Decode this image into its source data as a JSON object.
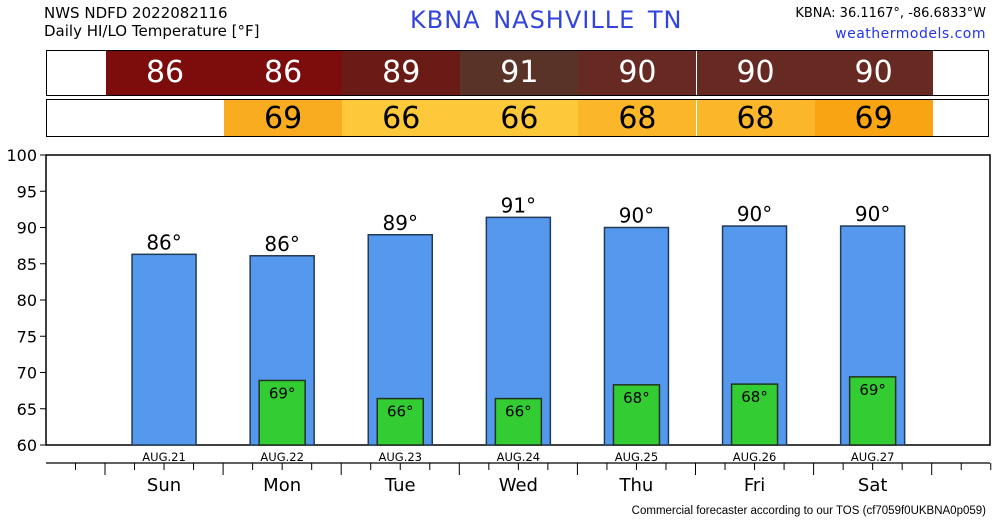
{
  "header": {
    "line1": "NWS NDFD 2022082116",
    "line2": "Daily HI/LO Temperature [°F]",
    "title": "KBNA  NASHVILLE    TN",
    "coords": "KBNA: 36.1167°, -86.6833°W",
    "site": "weathermodels.com"
  },
  "hi_strip": [
    {
      "value": "86",
      "color": "#7d0c0c"
    },
    {
      "value": "86",
      "color": "#7d0c0c"
    },
    {
      "value": "89",
      "color": "#6a1b16"
    },
    {
      "value": "91",
      "color": "#5a3328"
    },
    {
      "value": "90",
      "color": "#662a22"
    },
    {
      "value": "90",
      "color": "#662a22"
    },
    {
      "value": "90",
      "color": "#662a22"
    }
  ],
  "lo_strip": [
    {
      "value": "69",
      "color": "#f9ac20"
    },
    {
      "value": "66",
      "color": "#fdc93a"
    },
    {
      "value": "66",
      "color": "#fdc93a"
    },
    {
      "value": "68",
      "color": "#fbb62a"
    },
    {
      "value": "68",
      "color": "#fbb62a"
    },
    {
      "value": "69",
      "color": "#f9a412"
    }
  ],
  "chart_data": {
    "type": "bar",
    "days": [
      "Sun",
      "Mon",
      "Tue",
      "Wed",
      "Thu",
      "Fri",
      "Sat"
    ],
    "dates": [
      "AUG.21",
      "AUG.22",
      "AUG.23",
      "AUG.24",
      "AUG.25",
      "AUG.26",
      "AUG.27"
    ],
    "series": [
      {
        "values": [
          86.3,
          86.1,
          89.0,
          91.4,
          90.0,
          90.2,
          90.2
        ],
        "labels": [
          "86°",
          "86°",
          "89°",
          "91°",
          "90°",
          "90°",
          "90°"
        ],
        "color": "#5599ee"
      },
      {
        "values": [
          null,
          68.9,
          66.4,
          66.4,
          68.3,
          68.4,
          69.4
        ],
        "labels": [
          "",
          "69°",
          "66°",
          "66°",
          "68°",
          "68°",
          "69°"
        ],
        "color": "#33cc33"
      }
    ],
    "ylim": [
      60,
      100
    ],
    "yticks": [
      "60",
      "65",
      "70",
      "75",
      "80",
      "85",
      "90",
      "95",
      "100"
    ],
    "grid": false
  },
  "footer": "Commercial forecaster according to our TOS (cf7059f0UKBNA0p059)"
}
